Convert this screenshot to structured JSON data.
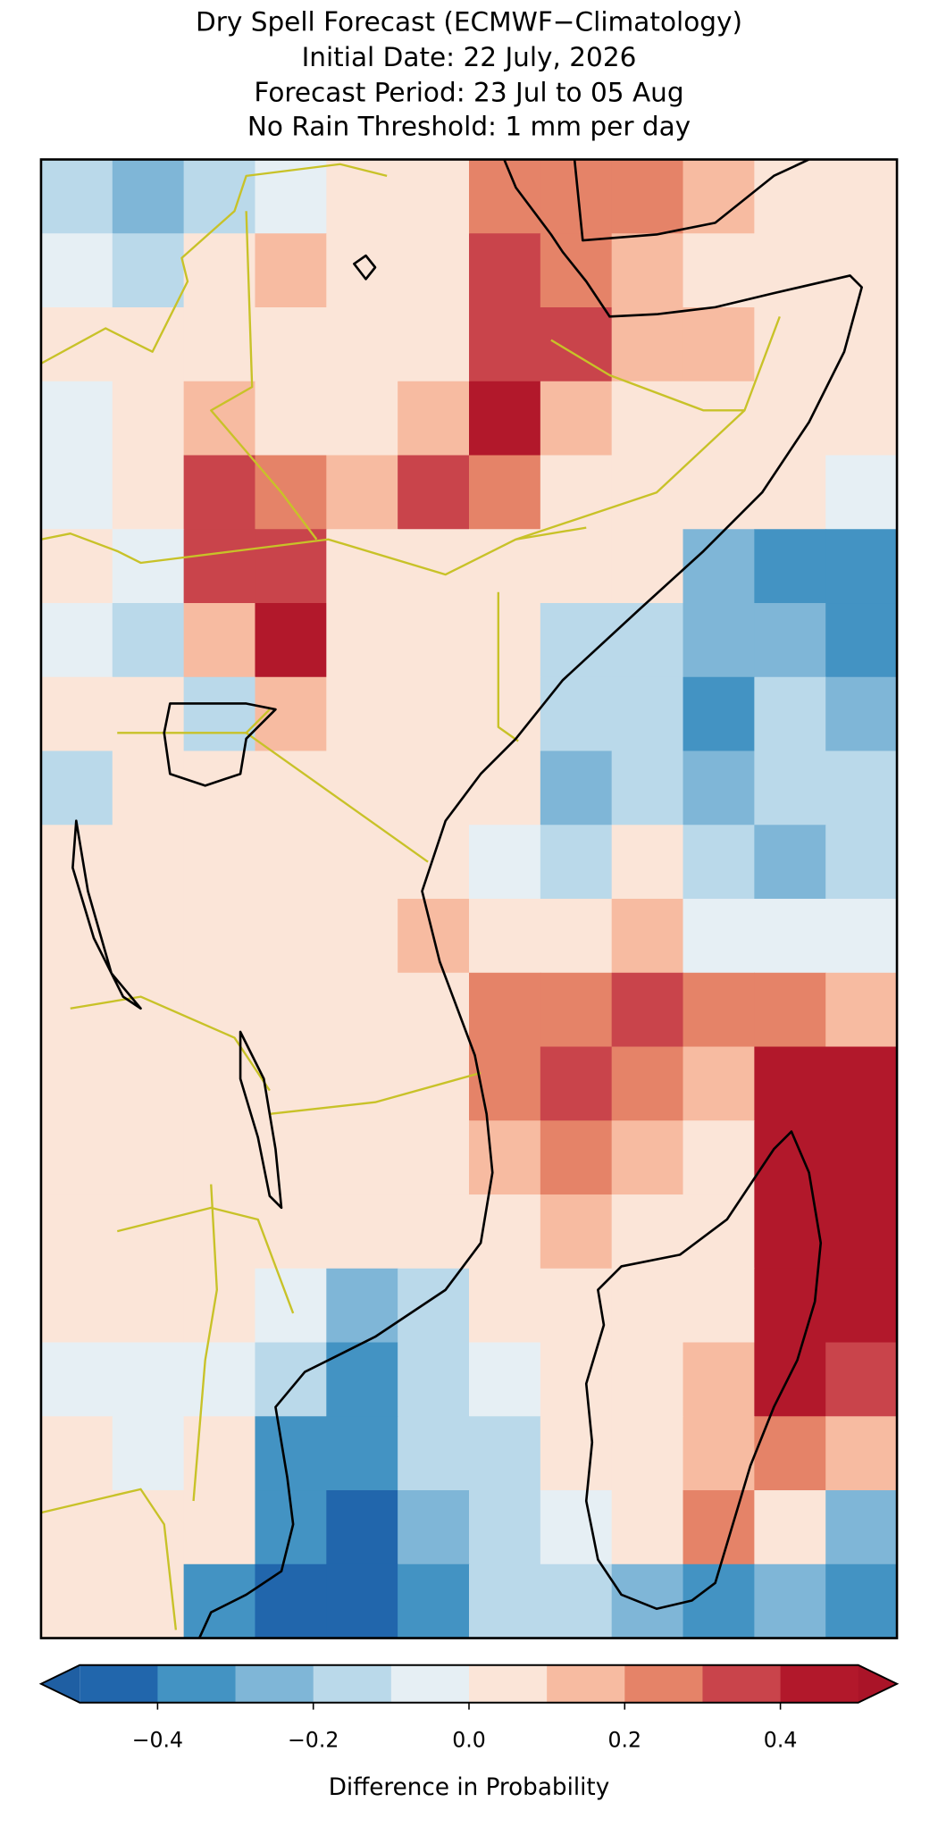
{
  "chart_data": {
    "type": "heatmap",
    "title": "Dry Spell Forecast (ECMWF−Climatology)",
    "subtitle_1": "Initial Date: 22 July, 2026",
    "subtitle_2": "Forecast Period: 23 Jul to 05 Aug",
    "subtitle_3": "No Rain Threshold: 1 mm per day",
    "colorbar_label": "Difference in Probability",
    "clim": [
      -0.5,
      0.5
    ],
    "levels": [
      -0.5,
      -0.4,
      -0.3,
      -0.2,
      -0.1,
      0.0,
      0.1,
      0.2,
      0.3,
      0.4,
      0.5
    ],
    "colors": [
      "#2166ac",
      "#4393c3",
      "#7fb6d7",
      "#bad9ea",
      "#e6eff4",
      "#fbe5d8",
      "#f7bba1",
      "#e58368",
      "#c9444b",
      "#b2182b"
    ],
    "under_color": "#1f5fa3",
    "over_color": "#aa1428",
    "cticks": [
      {
        "value": -0.4,
        "label": "−0.4"
      },
      {
        "value": -0.2,
        "label": "−0.2"
      },
      {
        "value": 0.0,
        "label": "0.0"
      },
      0.2,
      0.4
    ],
    "values": [
      [
        -0.15,
        -0.25,
        -0.15,
        -0.05,
        0.05,
        0.05,
        0.3,
        0.25,
        0.3,
        0.15,
        0.05,
        0.05
      ],
      [
        -0.05,
        -0.1,
        0.05,
        0.15,
        0.05,
        0.05,
        0.35,
        0.3,
        0.15,
        0.05,
        0.05,
        0.05
      ],
      [
        0.05,
        0.05,
        0.05,
        0.05,
        0.05,
        0.05,
        0.35,
        0.35,
        0.15,
        0.15,
        0.05,
        0.05
      ],
      [
        -0.05,
        0.05,
        0.15,
        0.05,
        0.05,
        0.15,
        0.45,
        0.15,
        0.05,
        0.05,
        0.05,
        0.05
      ],
      [
        -0.05,
        0.05,
        0.35,
        0.25,
        0.15,
        0.35,
        0.25,
        0.05,
        0.05,
        0.05,
        0.05,
        -0.05
      ],
      [
        0.05,
        -0.05,
        0.35,
        0.35,
        0.05,
        0.05,
        0.05,
        0.05,
        0.05,
        -0.25,
        -0.35,
        -0.35
      ],
      [
        -0.05,
        -0.15,
        0.15,
        0.45,
        0.05,
        0.05,
        0.05,
        -0.15,
        -0.15,
        -0.25,
        -0.25,
        -0.35
      ],
      [
        0.05,
        0.05,
        -0.15,
        0.15,
        0.05,
        0.05,
        0.05,
        -0.15,
        -0.15,
        -0.35,
        -0.15,
        -0.25
      ],
      [
        -0.15,
        0.05,
        0.05,
        0.05,
        0.05,
        0.05,
        0.05,
        -0.25,
        -0.15,
        -0.25,
        -0.15,
        -0.15
      ],
      [
        0.05,
        0.05,
        0.05,
        0.05,
        0.05,
        0.05,
        -0.05,
        -0.15,
        0.05,
        -0.15,
        -0.25,
        -0.15
      ],
      [
        0.05,
        0.05,
        0.05,
        0.05,
        0.05,
        0.15,
        0.05,
        0.05,
        0.15,
        -0.05,
        -0.05,
        -0.05
      ],
      [
        0.05,
        0.05,
        0.05,
        0.05,
        0.05,
        0.05,
        0.25,
        0.25,
        0.35,
        0.25,
        0.25,
        0.15
      ],
      [
        0.05,
        0.05,
        0.05,
        0.05,
        0.05,
        0.05,
        0.25,
        0.35,
        0.25,
        0.15,
        0.45,
        0.45
      ],
      [
        0.05,
        0.05,
        0.05,
        0.05,
        0.05,
        0.05,
        0.15,
        0.25,
        0.15,
        0.05,
        0.45,
        0.45
      ],
      [
        0.05,
        0.05,
        0.05,
        0.05,
        0.05,
        0.05,
        0.05,
        0.15,
        0.05,
        0.05,
        0.45,
        0.45
      ],
      [
        0.05,
        0.05,
        0.05,
        -0.05,
        -0.25,
        -0.15,
        0.05,
        0.05,
        0.05,
        0.05,
        0.45,
        0.45
      ],
      [
        -0.05,
        -0.05,
        -0.05,
        -0.15,
        -0.35,
        -0.15,
        -0.05,
        0.05,
        0.05,
        0.15,
        0.45,
        0.35
      ],
      [
        0.05,
        -0.05,
        0.05,
        -0.35,
        -0.35,
        -0.15,
        -0.15,
        0.05,
        0.05,
        0.15,
        0.25,
        0.15
      ],
      [
        0.05,
        0.05,
        0.05,
        -0.35,
        -0.45,
        -0.25,
        -0.15,
        -0.05,
        0.05,
        0.25,
        0.05,
        -0.25
      ],
      [
        0.05,
        0.05,
        -0.35,
        -0.45,
        -0.45,
        -0.35,
        -0.15,
        -0.15,
        -0.25,
        -0.35,
        -0.25,
        -0.35
      ]
    ]
  }
}
